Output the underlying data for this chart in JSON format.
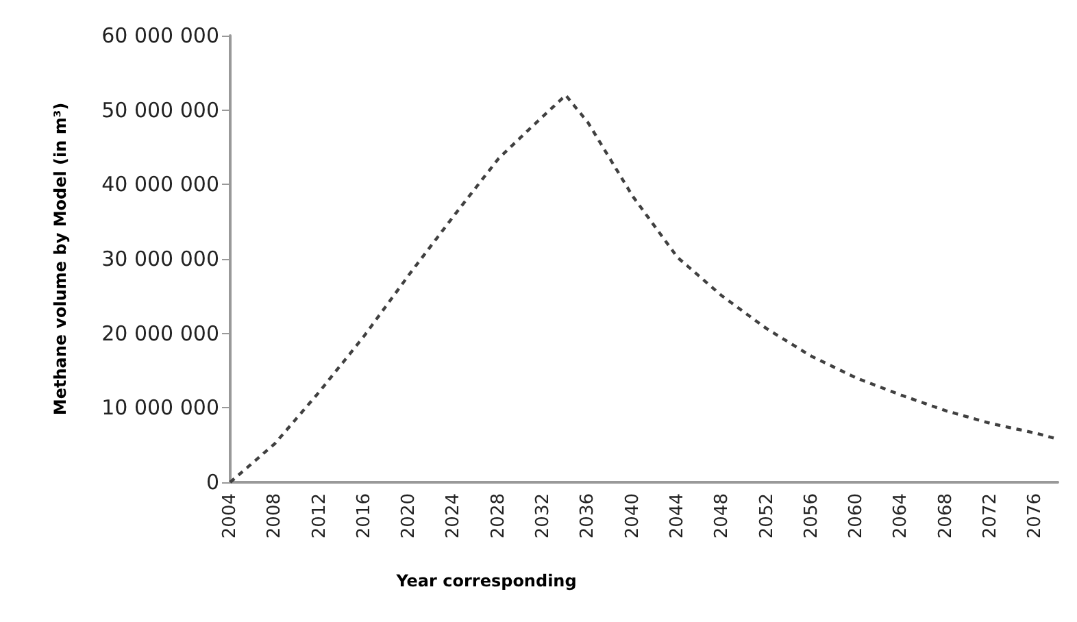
{
  "chart_data": {
    "type": "line",
    "xlabel": "Year corresponding",
    "ylabel": "Methane volume by Model (in m³)",
    "x": [
      2004,
      2008,
      2012,
      2016,
      2020,
      2024,
      2028,
      2031,
      2034,
      2036,
      2040,
      2044,
      2048,
      2052,
      2056,
      2060,
      2064,
      2068,
      2072,
      2076,
      2078
    ],
    "series": [
      {
        "color": "#404040",
        "values": [
          0,
          5200000,
          12200000,
          19700000,
          27900000,
          35800000,
          43500000,
          47800000,
          52000000,
          48300000,
          38400000,
          30200000,
          25000000,
          20600000,
          16900000,
          14000000,
          11700000,
          9600000,
          7900000,
          6600000,
          5800000
        ]
      }
    ],
    "xlim": [
      2004,
      2078
    ],
    "xticks": [
      2004,
      2008,
      2012,
      2016,
      2020,
      2024,
      2028,
      2032,
      2036,
      2040,
      2044,
      2048,
      2052,
      2056,
      2060,
      2064,
      2068,
      2072,
      2076
    ],
    "ylim": [
      0,
      60000000
    ],
    "yticks": [
      {
        "value": 0,
        "label": "0"
      },
      {
        "value": 10000000,
        "label": "10 000 000"
      },
      {
        "value": 20000000,
        "label": "20 000 000"
      },
      {
        "value": 30000000,
        "label": "30 000 000"
      },
      {
        "value": 40000000,
        "label": "40 000 000"
      },
      {
        "value": 50000000,
        "label": "50 000 000"
      },
      {
        "value": 60000000,
        "label": "60 000 000"
      }
    ],
    "grid": false,
    "marker": "none",
    "line_style": "dashed"
  }
}
